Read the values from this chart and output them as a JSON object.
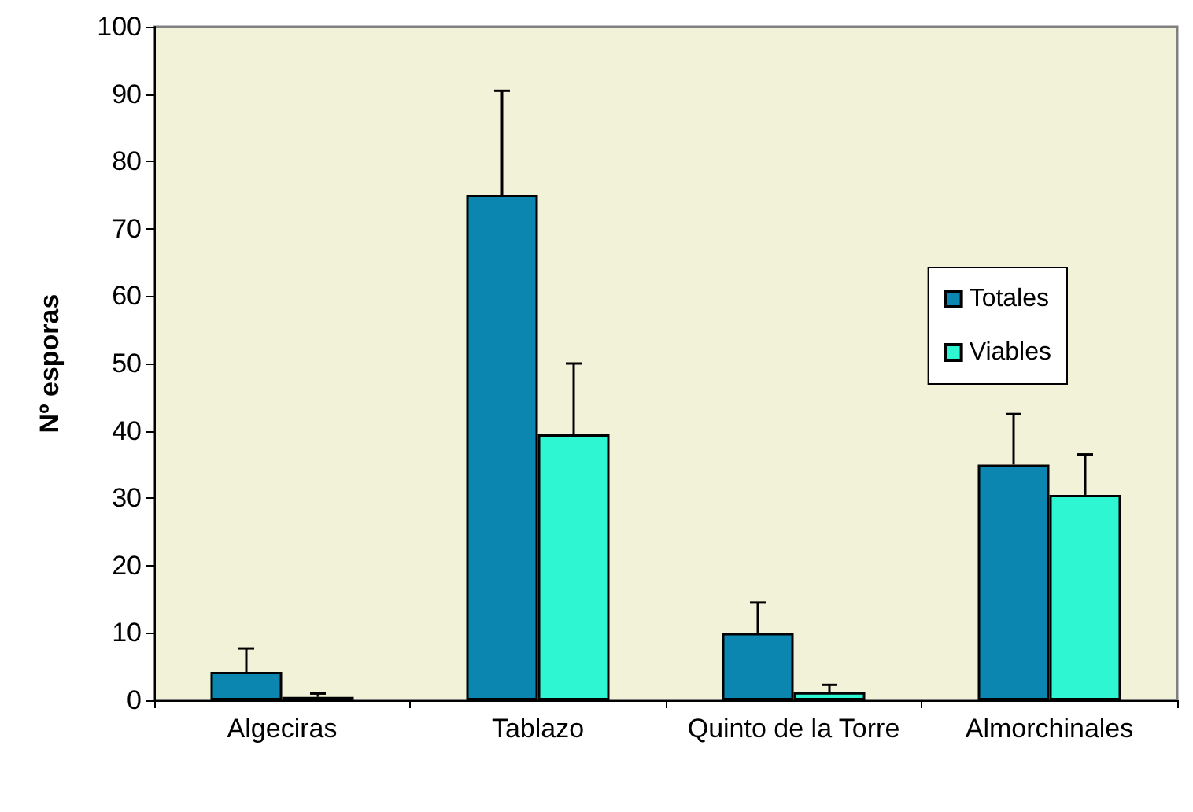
{
  "chart_data": {
    "type": "bar",
    "ylabel": "Nº esporas",
    "categories": [
      "Algeciras",
      "Tablazo",
      "Quinto de la Torre",
      "Almorchinales"
    ],
    "series": [
      {
        "name": "Totales",
        "color": "#0b86b0",
        "values": [
          4.2,
          75,
          10,
          35
        ],
        "errors": [
          [
            4.2,
            7.7
          ],
          [
            75,
            90.5
          ],
          [
            10,
            14.5
          ],
          [
            35,
            42.5
          ]
        ]
      },
      {
        "name": "Viables",
        "color": "#2ef5d2",
        "values": [
          0.5,
          39.5,
          1.2,
          30.5
        ],
        "errors": [
          [
            0.5,
            1
          ],
          [
            39.5,
            50
          ],
          [
            1.2,
            2.3
          ],
          [
            30.5,
            36.5
          ]
        ]
      }
    ],
    "ylim": [
      0,
      100
    ],
    "yticks": [
      0,
      10,
      20,
      30,
      40,
      50,
      60,
      70,
      80,
      90,
      100
    ],
    "grid": false,
    "legend": "right"
  }
}
